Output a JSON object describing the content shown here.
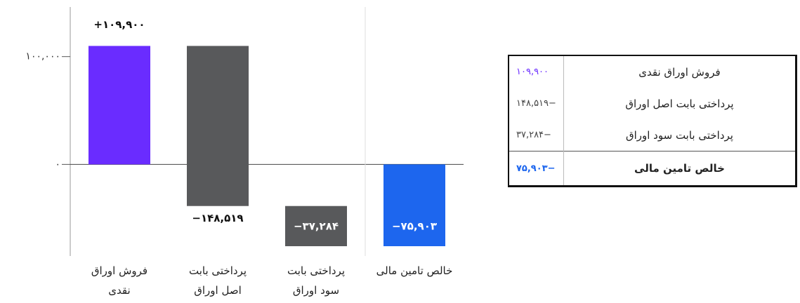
{
  "chart_data": {
    "type": "waterfall",
    "categories": [
      "فروش اوراق نقدی",
      "پرداختی بابت اصل اوراق",
      "پرداختی بابت سود اوراق",
      "خالص تامین مالی"
    ],
    "values": [
      109900,
      -148519,
      -37284,
      -75903
    ],
    "value_labels": [
      "+۱۰۹,۹۰۰",
      "−۱۴۸,۵۱۹",
      "−۳۷,۲۸۴",
      "−۷۵,۹۰۳"
    ],
    "colors": [
      "#6a2cff",
      "#58595b",
      "#58595b",
      "#1d66ee"
    ],
    "total": [
      false,
      false,
      false,
      true
    ],
    "ylim": [
      -85000,
      146000
    ],
    "yticks": [
      {
        "value": 0,
        "label": "۰"
      },
      {
        "value": 100000,
        "label": "۱۰۰,۰۰۰"
      }
    ]
  },
  "table": {
    "rows": [
      [
        "فروش اوراق نقدی",
        "۱۰۹,۹۰۰"
      ],
      [
        "پرداختی بابت اصل اوراق",
        "−۱۴۸,۵۱۹"
      ],
      [
        "پرداختی بابت سود اوراق",
        "−۳۷,۲۸۴"
      ],
      [
        "خالص تامین مالی",
        "−۷۵,۹۰۳"
      ]
    ]
  }
}
